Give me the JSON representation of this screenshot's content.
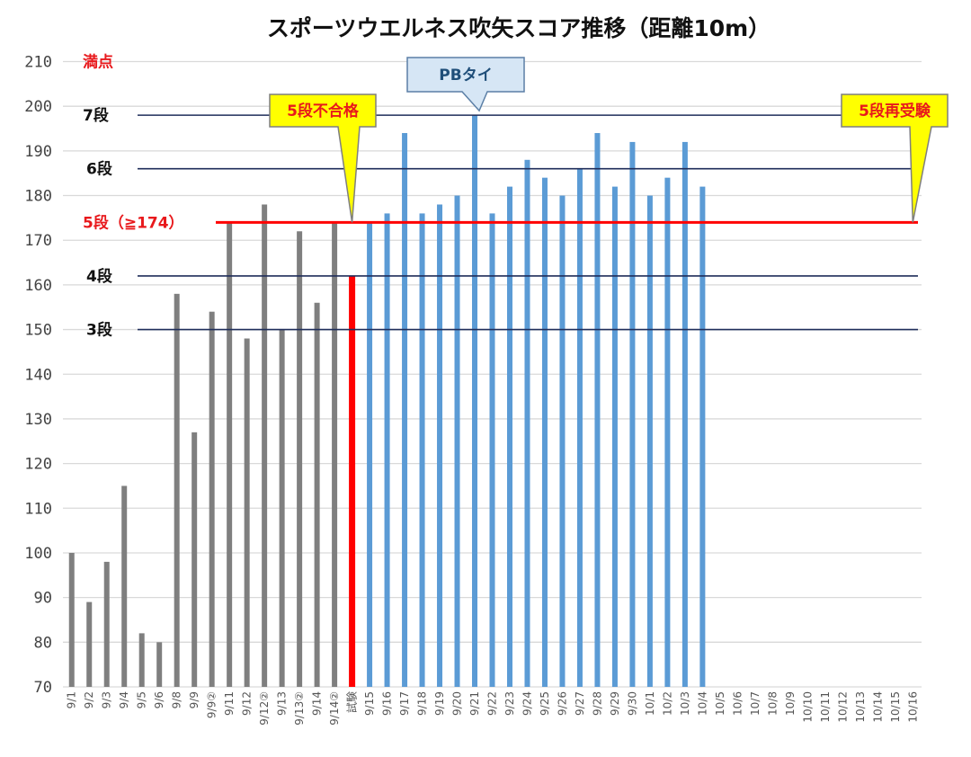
{
  "chart_data": {
    "type": "bar",
    "title": "スポーツウエルネス吹矢スコア推移（距離10m）",
    "xlabel": "",
    "ylabel": "",
    "ylim": [
      70,
      210
    ],
    "yticks": [
      70,
      80,
      90,
      100,
      110,
      120,
      130,
      140,
      150,
      160,
      170,
      180,
      190,
      200,
      210
    ],
    "grid": true,
    "categories": [
      "9/1",
      "9/2",
      "9/3",
      "9/4",
      "9/5",
      "9/6",
      "9/8",
      "9/9",
      "9/9②",
      "9/11",
      "9/12",
      "9/12②",
      "9/13",
      "9/13②",
      "9/14",
      "9/14②",
      "試験",
      "9/15",
      "9/16",
      "9/17",
      "9/18",
      "9/19",
      "9/20",
      "9/21",
      "9/22",
      "9/23",
      "9/24",
      "9/25",
      "9/26",
      "9/27",
      "9/28",
      "9/29",
      "9/30",
      "10/1",
      "10/2",
      "10/3",
      "10/4",
      "10/5",
      "10/6",
      "10/7",
      "10/8",
      "10/9",
      "10/10",
      "10/11",
      "10/12",
      "10/13",
      "10/14",
      "10/15",
      "10/16"
    ],
    "values": [
      100,
      89,
      98,
      115,
      82,
      80,
      158,
      127,
      154,
      174,
      148,
      178,
      150,
      172,
      156,
      174,
      162,
      174,
      176,
      194,
      176,
      178,
      180,
      198,
      176,
      182,
      188,
      184,
      180,
      186,
      194,
      182,
      192,
      180,
      184,
      192,
      182,
      null,
      null,
      null,
      null,
      null,
      null,
      null,
      null,
      null,
      null,
      null,
      null
    ],
    "bar_colors": {
      "before": "#7f7f7f",
      "exam": "#ff0000",
      "after": "#5b9bd5"
    },
    "reference_lines": [
      {
        "label": "満点",
        "value": 210,
        "color": "#e8191c",
        "line": false
      },
      {
        "label": "7段",
        "value": 198,
        "color": "#1f2d5a",
        "line": true
      },
      {
        "label": "6段",
        "value": 186,
        "color": "#1f2d5a",
        "line": true
      },
      {
        "label": "5段（≧174）",
        "value": 174,
        "color": "#ff0000",
        "line": true
      },
      {
        "label": "4段",
        "value": 162,
        "color": "#1f2d5a",
        "line": true
      },
      {
        "label": "3段",
        "value": 150,
        "color": "#1f2d5a",
        "line": true
      }
    ],
    "annotations": [
      {
        "text": "5段不合格",
        "target_category": "試験",
        "value": 174,
        "style": "yellow"
      },
      {
        "text": "PBタイ",
        "target_category": "9/21",
        "value": 198,
        "style": "blue"
      },
      {
        "text": "5段再受験",
        "target_category": "10/16",
        "value": 174,
        "style": "yellow"
      }
    ]
  }
}
